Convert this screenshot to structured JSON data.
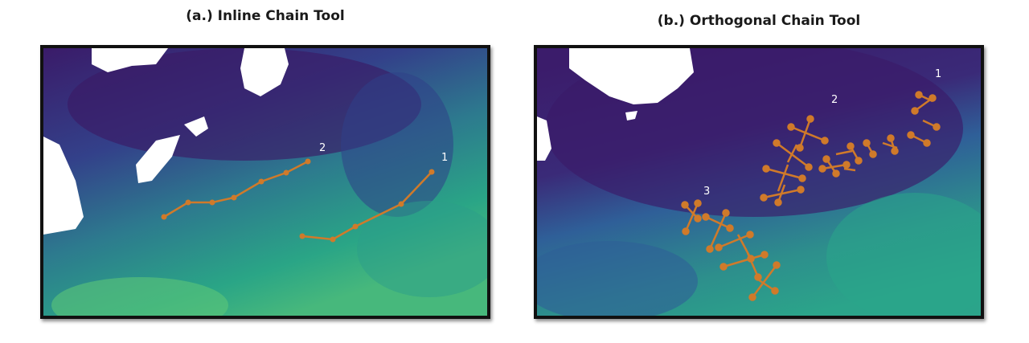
{
  "panels": [
    {
      "title": "(a.) Inline Chain Tool",
      "labels": [
        "2",
        "1"
      ]
    },
    {
      "title": "(b.) Orthogonal Chain Tool",
      "labels": [
        "1",
        "2",
        "3"
      ]
    }
  ],
  "colors": {
    "deep_water": "#3b1c6b",
    "mid_water": "#2f5f98",
    "shelf_water": "#2e9a8a",
    "warm_water": "#5cc27a",
    "land": "#ffffff",
    "chain": "#d07a2a",
    "frame": "#111111"
  }
}
